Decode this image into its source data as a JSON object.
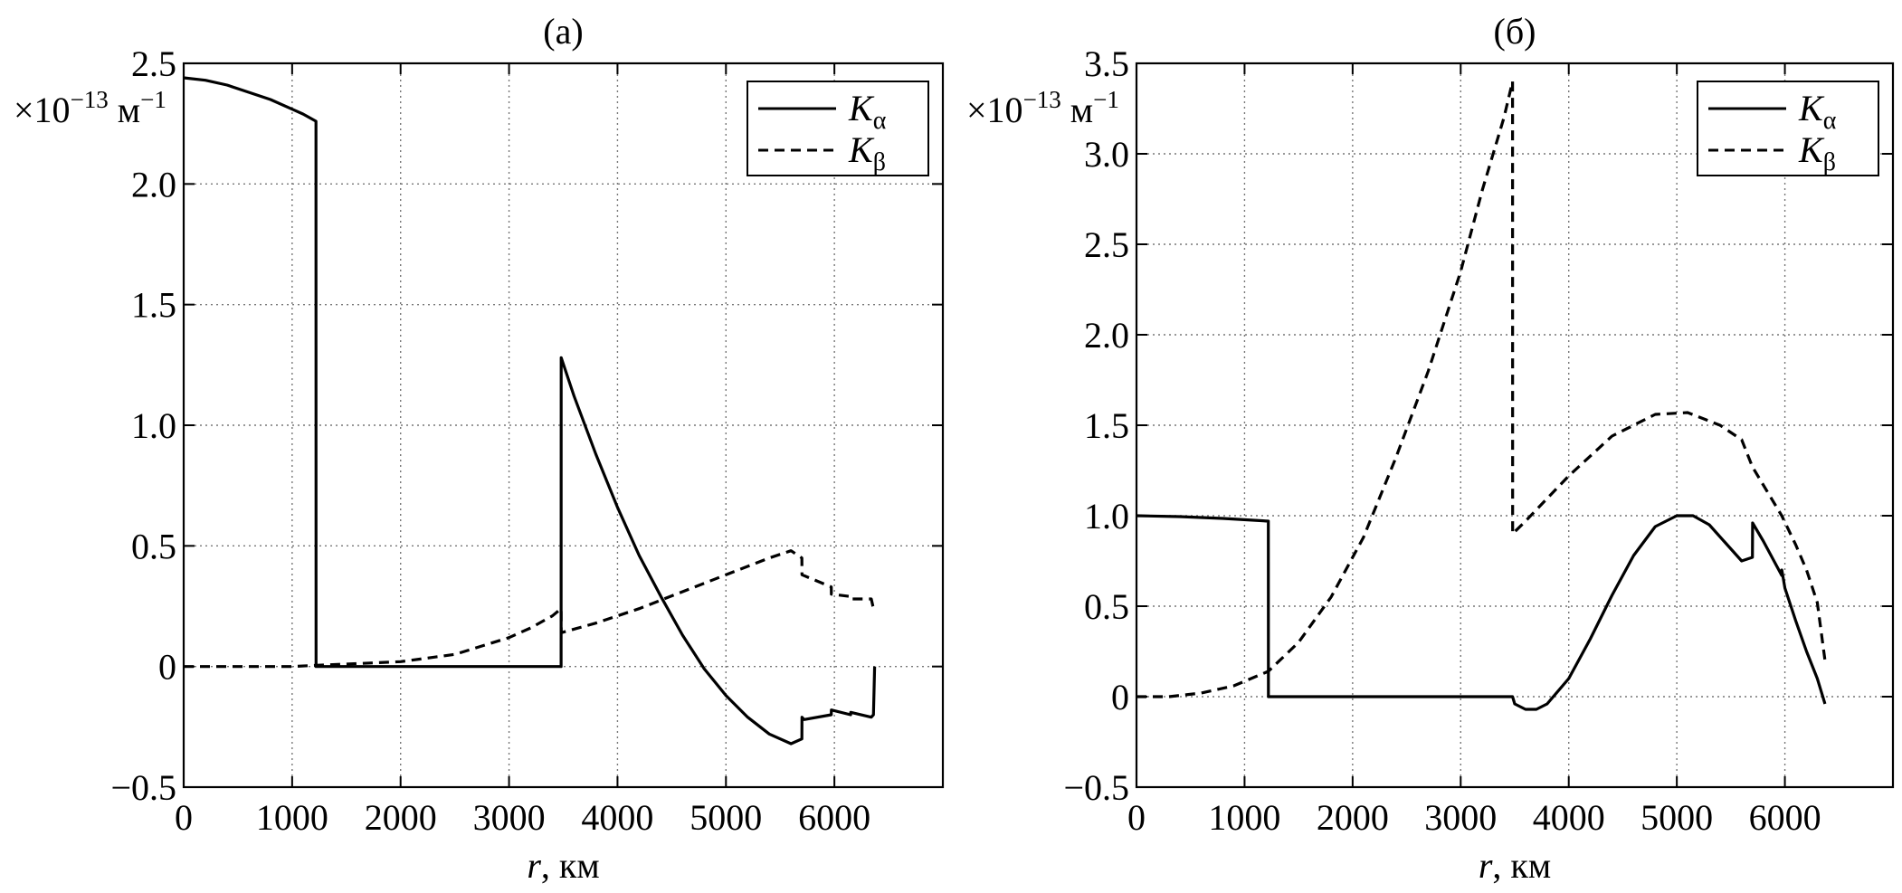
{
  "chart_data": [
    {
      "type": "line",
      "title": "(а)",
      "xlabel_var": "r",
      "xlabel_unit": ", км",
      "ylabel": "×10",
      "ylabel_exp": "−13",
      "ylabel_unit": " м",
      "ylabel_unit_exp": "−1",
      "xlim": [
        0,
        7000
      ],
      "ylim": [
        -0.5,
        2.5
      ],
      "xticks": [
        0,
        1000,
        2000,
        3000,
        4000,
        5000,
        6000
      ],
      "xtick_labels": [
        "0",
        "1000",
        "2000",
        "3000",
        "4000",
        "5000",
        "6000"
      ],
      "yticks": [
        -0.5,
        0,
        0.5,
        1.0,
        1.5,
        2.0,
        2.5
      ],
      "ytick_labels": [
        "−0.5",
        "0",
        "0.5",
        "1.0",
        "1.5",
        "2.0",
        "2.5"
      ],
      "grid": true,
      "legend_position": "top-right",
      "series": [
        {
          "name": "K",
          "name_sub": "α",
          "style": "solid",
          "x": [
            0,
            200,
            400,
            600,
            800,
            1000,
            1100,
            1220,
            1221,
            3480,
            3481,
            3600,
            3800,
            4000,
            4200,
            4400,
            4600,
            4800,
            5000,
            5200,
            5400,
            5600,
            5700,
            5701,
            5720,
            5971,
            5972,
            6150,
            6151,
            6340,
            6360,
            6371
          ],
          "y": [
            2.44,
            2.43,
            2.41,
            2.38,
            2.35,
            2.31,
            2.29,
            2.26,
            0,
            0,
            1.28,
            1.12,
            0.88,
            0.66,
            0.46,
            0.29,
            0.13,
            -0.01,
            -0.12,
            -0.21,
            -0.28,
            -0.32,
            -0.3,
            -0.21,
            -0.22,
            -0.2,
            -0.18,
            -0.2,
            -0.19,
            -0.21,
            -0.2,
            0
          ]
        },
        {
          "name": "K",
          "name_sub": "β",
          "style": "dashed",
          "x": [
            0,
            500,
            1000,
            1220,
            1500,
            2000,
            2500,
            3000,
            3200,
            3400,
            3480,
            3481,
            3800,
            4200,
            4600,
            5000,
            5400,
            5600,
            5700,
            5701,
            5971,
            5972,
            6150,
            6151,
            6340,
            6355,
            6371
          ],
          "y": [
            0,
            0,
            0,
            0.005,
            0.01,
            0.02,
            0.05,
            0.12,
            0.16,
            0.21,
            0.24,
            0.14,
            0.18,
            0.24,
            0.31,
            0.38,
            0.45,
            0.48,
            0.45,
            0.38,
            0.33,
            0.3,
            0.29,
            0.28,
            0.28,
            0.25,
            0.23
          ]
        }
      ]
    },
    {
      "type": "line",
      "title": "(б)",
      "xlabel_var": "r",
      "xlabel_unit": ", км",
      "ylabel": "×10",
      "ylabel_exp": "−13",
      "ylabel_unit": " м",
      "ylabel_unit_exp": "−1",
      "xlim": [
        0,
        7000
      ],
      "ylim": [
        -0.5,
        3.5
      ],
      "xticks": [
        0,
        1000,
        2000,
        3000,
        4000,
        5000,
        6000
      ],
      "xtick_labels": [
        "0",
        "1000",
        "2000",
        "3000",
        "4000",
        "5000",
        "6000"
      ],
      "yticks": [
        -0.5,
        0,
        0.5,
        1.0,
        1.5,
        2.0,
        2.5,
        3.0,
        3.5
      ],
      "ytick_labels": [
        "−0.5",
        "0",
        "0.5",
        "1.0",
        "1.5",
        "2.0",
        "2.5",
        "3.0",
        "3.5"
      ],
      "grid": true,
      "legend_position": "top-right",
      "series": [
        {
          "name": "K",
          "name_sub": "α",
          "style": "solid",
          "x": [
            0,
            400,
            800,
            1220,
            1221,
            3480,
            3500,
            3600,
            3700,
            3800,
            4000,
            4200,
            4400,
            4600,
            4800,
            5000,
            5150,
            5300,
            5450,
            5600,
            5700,
            5701,
            5800,
            5971,
            5972,
            6000,
            6100,
            6200,
            6300,
            6371
          ],
          "y": [
            1.0,
            0.995,
            0.985,
            0.97,
            0,
            0,
            -0.04,
            -0.07,
            -0.07,
            -0.04,
            0.1,
            0.32,
            0.56,
            0.78,
            0.94,
            1.0,
            1.0,
            0.95,
            0.85,
            0.75,
            0.77,
            0.96,
            0.86,
            0.67,
            0.7,
            0.6,
            0.42,
            0.25,
            0.1,
            -0.04
          ]
        },
        {
          "name": "K",
          "name_sub": "β",
          "style": "dashed",
          "x": [
            0,
            300,
            600,
            900,
            1220,
            1500,
            1800,
            2100,
            2400,
            2700,
            3000,
            3200,
            3400,
            3480,
            3481,
            3600,
            4000,
            4400,
            4800,
            5100,
            5400,
            5600,
            5700,
            5800,
            5971,
            6100,
            6200,
            6300,
            6371
          ],
          "y": [
            0,
            0,
            0.02,
            0.06,
            0.14,
            0.3,
            0.55,
            0.88,
            1.32,
            1.8,
            2.35,
            2.8,
            3.2,
            3.4,
            0.9,
            0.97,
            1.22,
            1.44,
            1.56,
            1.57,
            1.5,
            1.42,
            1.27,
            1.17,
            1.0,
            0.84,
            0.7,
            0.52,
            0.2
          ]
        }
      ]
    }
  ]
}
